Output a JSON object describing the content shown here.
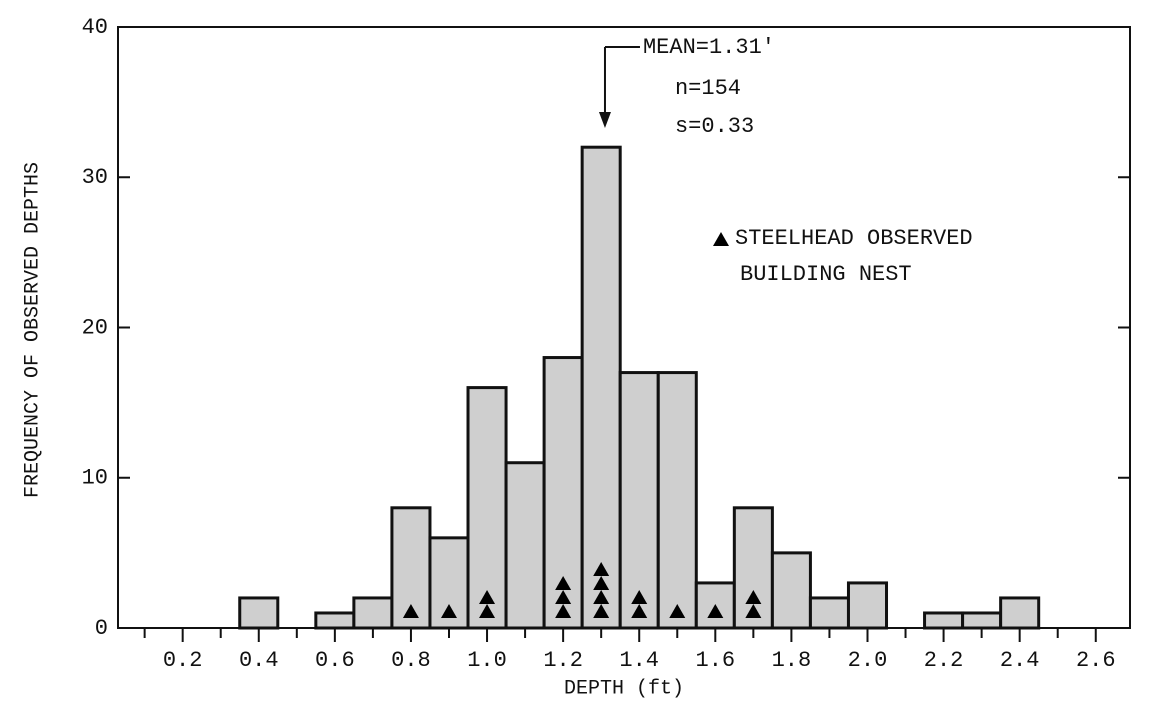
{
  "chart_data": {
    "type": "histogram",
    "bins": [
      0.35,
      0.45,
      0.55,
      0.65,
      0.75,
      0.85,
      0.95,
      1.05,
      1.15,
      1.25,
      1.35,
      1.45,
      1.55,
      1.65,
      1.75,
      1.85,
      1.95,
      2.05,
      2.15,
      2.25,
      2.35,
      2.45
    ],
    "values": [
      2,
      0,
      1,
      2,
      8,
      6,
      16,
      11,
      18,
      32,
      17,
      17,
      3,
      8,
      5,
      2,
      3,
      0,
      1,
      1,
      2
    ],
    "color": "#cfcfcf",
    "markers": {
      "name": [
        "STEELHEAD OBSERVED",
        "BUILDING NEST"
      ],
      "color": "#000000",
      "values": [
        0,
        0,
        0,
        0,
        1,
        1,
        2,
        0,
        3,
        4,
        2,
        1,
        1,
        2,
        0,
        0,
        0,
        0,
        0,
        0,
        0
      ]
    },
    "annotations": [
      "MEAN=1.31'",
      "n=154",
      "s=0.33"
    ],
    "mean": 1.31,
    "xlabel": "DEPTH (ft)",
    "ylabel": "FREQUENCY OF OBSERVED DEPTHS",
    "xlim": [
      0.03,
      2.69
    ],
    "xticks": [
      0.2,
      0.4,
      0.6,
      0.8,
      {
        "value": 1.0,
        "label": "1.0"
      },
      1.2,
      1.4,
      1.6,
      1.8,
      {
        "value": 2.0,
        "label": "2.0"
      },
      2.2,
      2.4,
      2.6
    ],
    "xminorticks": [
      0.1,
      0.3,
      0.5,
      0.7,
      0.9,
      1.1,
      1.3,
      1.5,
      1.7,
      1.9,
      2.1,
      2.3,
      2.5
    ],
    "ylim": [
      0,
      40
    ],
    "yticks": [
      0,
      10,
      20,
      30,
      40
    ]
  }
}
